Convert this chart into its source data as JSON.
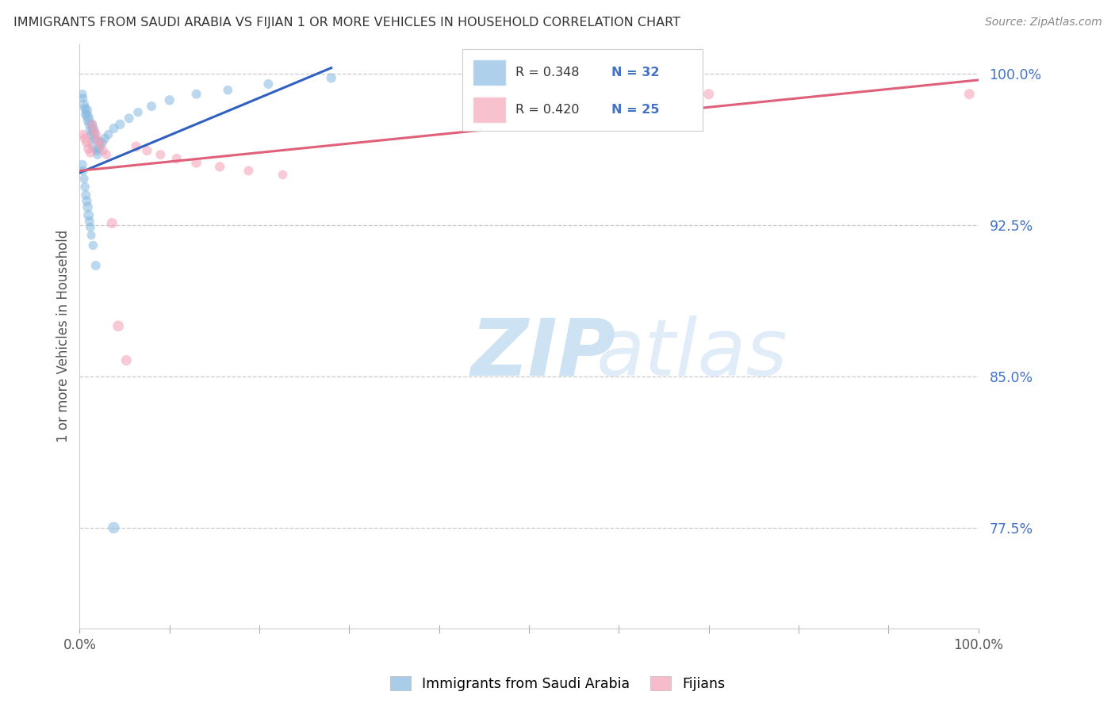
{
  "title": "IMMIGRANTS FROM SAUDI ARABIA VS FIJIAN 1 OR MORE VEHICLES IN HOUSEHOLD CORRELATION CHART",
  "source": "Source: ZipAtlas.com",
  "ylabel": "1 or more Vehicles in Household",
  "ytick_labels": [
    "100.0%",
    "92.5%",
    "85.0%",
    "77.5%"
  ],
  "ytick_values": [
    1.0,
    0.925,
    0.85,
    0.775
  ],
  "legend_r_blue": "R = 0.348",
  "legend_n_blue": "N = 32",
  "legend_r_pink": "R = 0.420",
  "legend_n_pink": "N = 25",
  "legend_label_blue": "Immigrants from Saudi Arabia",
  "legend_label_pink": "Fijians",
  "blue_color": "#85b8e0",
  "pink_color": "#f4a0b5",
  "blue_line_color": "#3060c0",
  "pink_line_color": "#e0607a",
  "watermark_zip": "ZIP",
  "watermark_atlas": "atlas",
  "blue_scatter_x": [
    0.003,
    0.004,
    0.005,
    0.006,
    0.007,
    0.008,
    0.009,
    0.01,
    0.011,
    0.012,
    0.013,
    0.014,
    0.015,
    0.016,
    0.017,
    0.018,
    0.019,
    0.02,
    0.022,
    0.025,
    0.028,
    0.032,
    0.038,
    0.045,
    0.055,
    0.065,
    0.08,
    0.1,
    0.13,
    0.165,
    0.21,
    0.28
  ],
  "blue_scatter_y": [
    0.99,
    0.988,
    0.985,
    0.983,
    0.98,
    0.982,
    0.979,
    0.977,
    0.975,
    0.972,
    0.97,
    0.975,
    0.973,
    0.971,
    0.968,
    0.965,
    0.962,
    0.96,
    0.963,
    0.966,
    0.968,
    0.97,
    0.973,
    0.975,
    0.978,
    0.981,
    0.984,
    0.987,
    0.99,
    0.992,
    0.995,
    0.998
  ],
  "blue_scatter_s": [
    70,
    65,
    75,
    80,
    85,
    90,
    95,
    100,
    85,
    80,
    75,
    70,
    85,
    90,
    80,
    220,
    75,
    70,
    80,
    85,
    75,
    70,
    75,
    80,
    75,
    70,
    75,
    80,
    75,
    70,
    75,
    80
  ],
  "blue_outlier_x": [
    0.038
  ],
  "blue_outlier_y": [
    0.775
  ],
  "blue_outlier_s": [
    110
  ],
  "blue_low_x": [
    0.003,
    0.004,
    0.005,
    0.006,
    0.007,
    0.008,
    0.009,
    0.01,
    0.011,
    0.012,
    0.013,
    0.015,
    0.018
  ],
  "blue_low_y": [
    0.955,
    0.952,
    0.948,
    0.944,
    0.94,
    0.937,
    0.934,
    0.93,
    0.927,
    0.924,
    0.92,
    0.915,
    0.905
  ],
  "blue_low_s": [
    75,
    70,
    65,
    70,
    75,
    80,
    85,
    90,
    75,
    70,
    65,
    70,
    75
  ],
  "pink_scatter_x": [
    0.004,
    0.006,
    0.008,
    0.01,
    0.012,
    0.014,
    0.016,
    0.018,
    0.02,
    0.023,
    0.026,
    0.03,
    0.036,
    0.043,
    0.052,
    0.063,
    0.075,
    0.09,
    0.108,
    0.13,
    0.156,
    0.188,
    0.226,
    0.7,
    0.99
  ],
  "pink_scatter_y": [
    0.97,
    0.968,
    0.966,
    0.963,
    0.961,
    0.975,
    0.972,
    0.97,
    0.967,
    0.965,
    0.962,
    0.96,
    0.926,
    0.875,
    0.858,
    0.964,
    0.962,
    0.96,
    0.958,
    0.956,
    0.954,
    0.952,
    0.95,
    0.99,
    0.99
  ],
  "pink_scatter_s": [
    75,
    80,
    85,
    90,
    80,
    75,
    70,
    80,
    85,
    80,
    75,
    70,
    90,
    100,
    90,
    85,
    80,
    75,
    80,
    85,
    80,
    75,
    70,
    90,
    90
  ],
  "xlim": [
    0.0,
    1.0
  ],
  "ylim": [
    0.725,
    1.015
  ],
  "blue_line_x": [
    0.0,
    0.28
  ],
  "blue_line_y": [
    0.951,
    1.003
  ],
  "pink_line_x": [
    0.0,
    1.0
  ],
  "pink_line_y": [
    0.952,
    0.997
  ]
}
